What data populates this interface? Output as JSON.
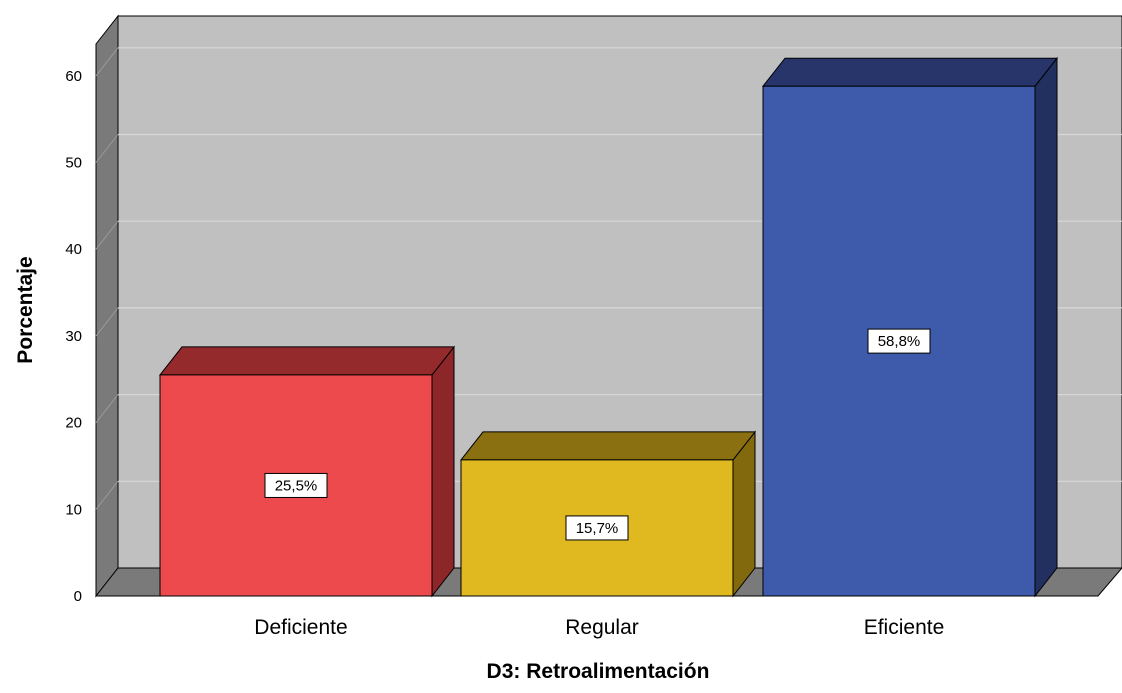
{
  "chart_data": {
    "type": "bar",
    "style": "3d",
    "categories": [
      "Deficiente",
      "Regular",
      "Eficiente"
    ],
    "values": [
      25.5,
      15.7,
      58.8
    ],
    "data_labels": [
      "25,5%",
      "15,7%",
      "58,8%"
    ],
    "xlabel": "D3: Retroalimentación",
    "ylabel": "Porcentaje",
    "ylim": [
      0,
      60
    ],
    "yticks": [
      0,
      10,
      20,
      30,
      40,
      50,
      60
    ],
    "grid": true,
    "legend": "none",
    "colors": {
      "bars": [
        "#ec4a4c",
        "#e0b820",
        "#3d5aab"
      ],
      "bar_tops": [
        "#952a2c",
        "#8a7010",
        "#27356a"
      ],
      "bar_sides": [
        "#8c2628",
        "#82690e",
        "#22305f"
      ],
      "wall": "#c0c0c0",
      "wall_side": "#7a7a7a",
      "floor": "#7a7a7a",
      "gridline": "#d8d8d8"
    }
  }
}
